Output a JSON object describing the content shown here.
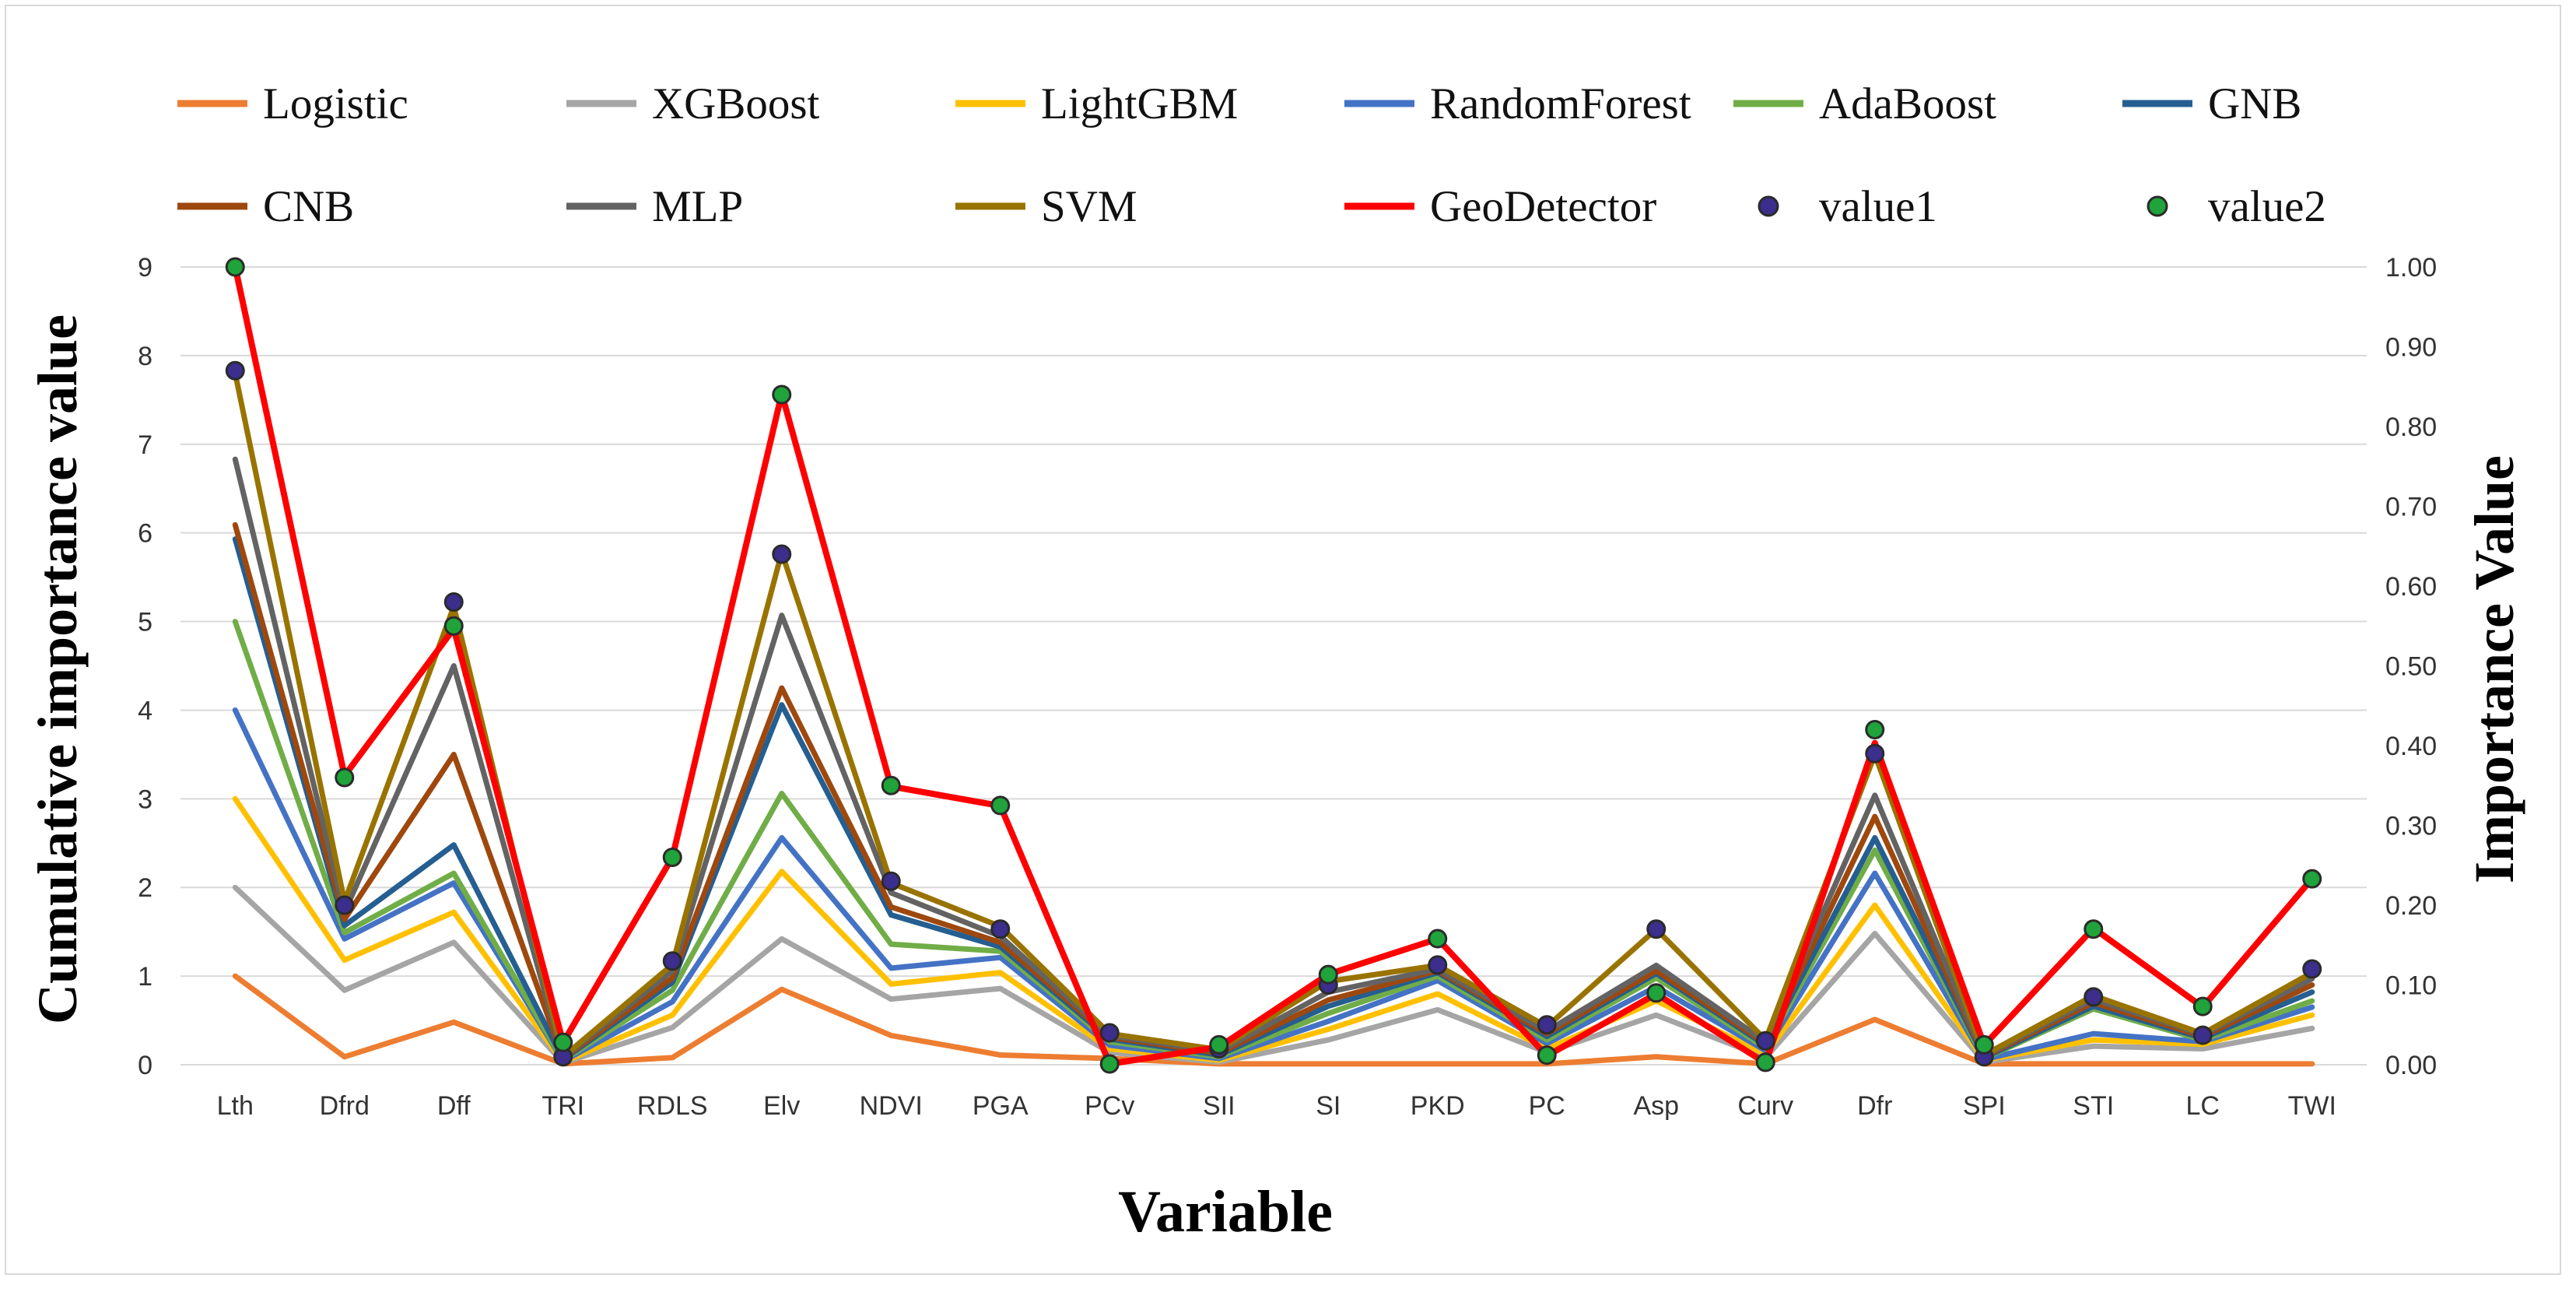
{
  "chart_data": {
    "type": "line",
    "title": "",
    "xlabel": "Variable",
    "ylabel": "Cumulative importance value",
    "ylabel_right": "Importance Value",
    "ylim": [
      0,
      9
    ],
    "ylim_right": [
      0,
      1
    ],
    "y_ticks": [
      "0",
      "1",
      "2",
      "3",
      "4",
      "5",
      "6",
      "7",
      "8",
      "9"
    ],
    "y_ticks_right": [
      "0.00",
      "0.10",
      "0.20",
      "0.30",
      "0.40",
      "0.50",
      "0.60",
      "0.70",
      "0.80",
      "0.90",
      "1.00"
    ],
    "grid": true,
    "legend_position": "top",
    "categories": [
      "Lth",
      "Dfrd",
      "Dff",
      "TRI",
      "RDLS",
      "Elv",
      "NDVI",
      "PGA",
      "PCv",
      "SII",
      "SI",
      "PKD",
      "PC",
      "Asp",
      "Curv",
      "Dfr",
      "SPI",
      "STI",
      "LC",
      "TWI"
    ],
    "series": [
      {
        "name": "Logistic",
        "kind": "line",
        "color": "#ED7D31",
        "values": [
          1.0,
          0.09,
          0.48,
          0.01,
          0.08,
          0.85,
          0.33,
          0.11,
          0.07,
          0.01,
          0.01,
          0.01,
          0.01,
          0.09,
          0.01,
          0.51,
          0.01,
          0.01,
          0.01,
          0.01
        ]
      },
      {
        "name": "XGBoost",
        "kind": "line",
        "color": "#A5A5A5",
        "values": [
          2.0,
          0.84,
          1.38,
          0.02,
          0.42,
          1.42,
          0.74,
          0.86,
          0.14,
          0.03,
          0.28,
          0.62,
          0.14,
          0.56,
          0.08,
          1.48,
          0.03,
          0.21,
          0.18,
          0.41
        ]
      },
      {
        "name": "LightGBM",
        "kind": "line",
        "color": "#FFC000",
        "values": [
          3.0,
          1.18,
          1.72,
          0.03,
          0.56,
          2.18,
          0.91,
          1.04,
          0.18,
          0.05,
          0.4,
          0.8,
          0.18,
          0.72,
          0.12,
          1.8,
          0.05,
          0.28,
          0.23,
          0.56
        ]
      },
      {
        "name": "RandomForest",
        "kind": "line",
        "color": "#4472C4",
        "values": [
          4.0,
          1.42,
          2.05,
          0.04,
          0.71,
          2.56,
          1.09,
          1.21,
          0.22,
          0.07,
          0.49,
          0.95,
          0.24,
          0.88,
          0.16,
          2.16,
          0.06,
          0.35,
          0.26,
          0.65
        ]
      },
      {
        "name": "AdaBoost",
        "kind": "line",
        "color": "#70AD47",
        "values": [
          5.0,
          1.49,
          2.16,
          0.05,
          0.84,
          3.06,
          1.36,
          1.28,
          0.26,
          0.09,
          0.58,
          1.0,
          0.28,
          0.98,
          0.19,
          2.42,
          0.07,
          0.63,
          0.28,
          0.72
        ]
      },
      {
        "name": "GNB",
        "kind": "line",
        "color": "#255E91",
        "values": [
          5.93,
          1.57,
          2.48,
          0.06,
          0.93,
          4.06,
          1.69,
          1.33,
          0.29,
          0.11,
          0.66,
          1.04,
          0.32,
          1.03,
          0.22,
          2.56,
          0.08,
          0.66,
          0.3,
          0.82
        ]
      },
      {
        "name": "CNB",
        "kind": "line",
        "color": "#9E480E",
        "values": [
          6.09,
          1.64,
          3.5,
          0.07,
          0.98,
          4.25,
          1.78,
          1.38,
          0.31,
          0.13,
          0.73,
          1.06,
          0.35,
          1.06,
          0.24,
          2.8,
          0.09,
          0.7,
          0.32,
          0.9
        ]
      },
      {
        "name": "MLP",
        "kind": "line",
        "color": "#636363",
        "values": [
          6.83,
          1.72,
          4.5,
          0.08,
          1.06,
          5.07,
          1.94,
          1.45,
          0.33,
          0.15,
          0.82,
          1.08,
          0.38,
          1.12,
          0.26,
          3.04,
          0.1,
          0.74,
          0.34,
          0.97
        ]
      },
      {
        "name": "SVM",
        "kind": "line",
        "color": "#997300",
        "values": [
          7.8,
          1.84,
          5.17,
          0.09,
          1.13,
          5.78,
          2.05,
          1.56,
          0.35,
          0.17,
          0.94,
          1.12,
          0.43,
          1.53,
          0.28,
          3.5,
          0.11,
          0.78,
          0.35,
          1.04
        ]
      },
      {
        "name": "GeoDetector",
        "kind": "line",
        "color": "#FF0000",
        "values": [
          9.0,
          3.26,
          4.92,
          0.25,
          2.34,
          7.57,
          3.14,
          2.92,
          0.01,
          0.2,
          1.02,
          1.42,
          0.1,
          0.8,
          0.02,
          3.63,
          0.22,
          1.54,
          0.65,
          2.1
        ]
      },
      {
        "name": "value1",
        "kind": "marker",
        "axis": "right",
        "color": "#3B2E8C",
        "values": [
          0.87,
          0.2,
          0.58,
          0.01,
          0.13,
          0.64,
          0.23,
          0.17,
          0.04,
          0.02,
          0.1,
          0.125,
          0.05,
          0.17,
          0.03,
          0.39,
          0.01,
          0.085,
          0.037,
          0.12
        ]
      },
      {
        "name": "value2",
        "kind": "marker",
        "axis": "right",
        "color": "#1FA33A",
        "values": [
          1.0,
          0.36,
          0.55,
          0.028,
          0.26,
          0.84,
          0.35,
          0.325,
          0.001,
          0.025,
          0.113,
          0.158,
          0.012,
          0.09,
          0.003,
          0.42,
          0.025,
          0.17,
          0.073,
          0.233
        ]
      }
    ]
  }
}
